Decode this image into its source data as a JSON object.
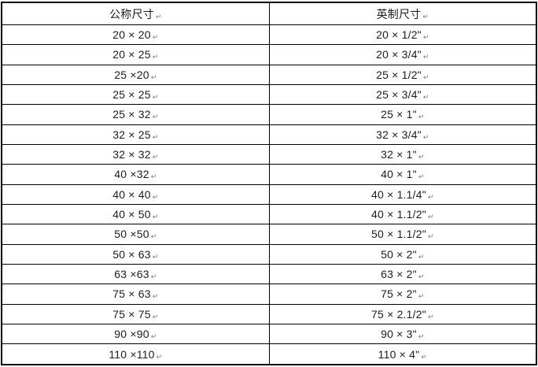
{
  "table": {
    "columns": [
      {
        "label": "公称尺寸"
      },
      {
        "label": "英制尺寸"
      }
    ],
    "end_of_cell_mark": "↵",
    "rows": [
      {
        "nominal": "20 × 20",
        "imperial": "20 × 1/2\""
      },
      {
        "nominal": "20 × 25",
        "imperial": "20 × 3/4\""
      },
      {
        "nominal": "25 ×20",
        "imperial": "25 × 1/2\""
      },
      {
        "nominal": "25 × 25",
        "imperial": "25 × 3/4\""
      },
      {
        "nominal": "25 × 32",
        "imperial": "25 × 1\""
      },
      {
        "nominal": "32 × 25",
        "imperial": "32 × 3/4\""
      },
      {
        "nominal": "32 × 32",
        "imperial": "32 × 1\""
      },
      {
        "nominal": "40 ×32",
        "imperial": "40 × 1\""
      },
      {
        "nominal": "40 × 40",
        "imperial": "40 × 1.1/4\""
      },
      {
        "nominal": "40 × 50",
        "imperial": "40 × 1.1/2\""
      },
      {
        "nominal": "50 ×50",
        "imperial": "50 × 1.1/2\""
      },
      {
        "nominal": "50 × 63",
        "imperial": "50 × 2\""
      },
      {
        "nominal": "63 ×63",
        "imperial": "63 × 2\""
      },
      {
        "nominal": "75 × 63",
        "imperial": "75 × 2\""
      },
      {
        "nominal": "75 × 75",
        "imperial": "75 × 2.1/2\""
      },
      {
        "nominal": "90 ×90",
        "imperial": "90 × 3\""
      },
      {
        "nominal": "110 ×110",
        "imperial": "110 × 4\""
      }
    ],
    "colors": {
      "border": "#000000",
      "text": "#1c1c1c",
      "mark": "#7b7b7b",
      "background": "#ffffff"
    }
  }
}
